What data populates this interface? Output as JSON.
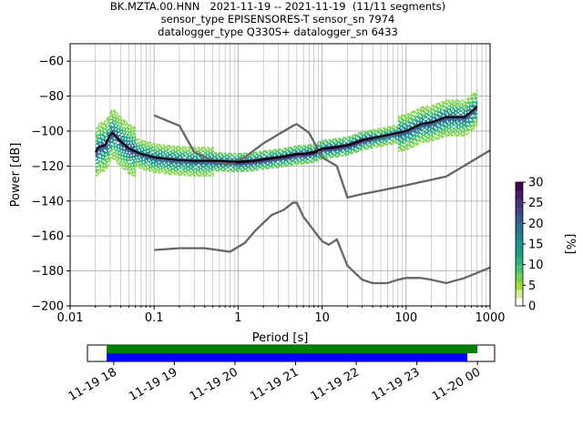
{
  "title_lines": [
    "BK.MZTA.00.HNN   2021-11-19 -- 2021-11-19  (11/11 segments)",
    "sensor_type EPISENSORES-T sensor_sn 7974",
    "datalogger_type Q330S+ datalogger_sn 6433"
  ],
  "colors": {
    "median": "#000000",
    "noise_models": "#666666",
    "coverage_data": "#008000",
    "coverage_gaps_bar": "#0000ff",
    "grid": "#b0b0b0"
  },
  "chart_data": [
    {
      "type": "heatmap",
      "subtype": "probabilistic power spectral density",
      "xlabel": "Period [s]",
      "ylabel": "Power [dB]",
      "xscale": "log",
      "xlim": [
        0.01,
        1000
      ],
      "ylim": [
        -200,
        -50
      ],
      "x_ticks": [
        0.01,
        0.1,
        1,
        10,
        100,
        1000
      ],
      "x_tick_labels": [
        "0.01",
        "0.1",
        "1",
        "10",
        "100",
        "1000"
      ],
      "y_ticks": [
        -200,
        -180,
        -160,
        -140,
        -120,
        -100,
        -80,
        -60
      ],
      "y_tick_labels": [
        "−200",
        "−180",
        "−160",
        "−140",
        "−120",
        "−100",
        "−80",
        "−60"
      ],
      "grid": true,
      "colorbar": {
        "label": "[%]",
        "range": [
          0,
          30
        ],
        "ticks": [
          0,
          5,
          10,
          15,
          20,
          25,
          30
        ],
        "colormap": "viridis_r (white at 0)"
      },
      "series": [
        {
          "role": "median",
          "x": [
            0.02,
            0.022,
            0.026,
            0.03,
            0.032,
            0.035,
            0.04,
            0.05,
            0.07,
            0.1,
            0.15,
            0.2,
            0.3,
            0.5,
            1,
            1.5,
            2,
            3,
            4,
            5,
            6,
            8,
            10,
            15,
            20,
            30,
            50,
            80,
            100,
            150,
            200,
            300,
            500,
            700
          ],
          "y": [
            -112,
            -109,
            -108,
            -102,
            -101,
            -103,
            -106,
            -110,
            -113,
            -115,
            -116,
            -116.5,
            -117,
            -117,
            -117.5,
            -117,
            -116,
            -115,
            -114,
            -113,
            -113,
            -112,
            -110,
            -109,
            -108,
            -105,
            -103,
            -101,
            -100,
            -96,
            -95,
            -92,
            -92,
            -86
          ]
        },
        {
          "role": "noise-model",
          "x": [
            0.1,
            0.2,
            0.3,
            0.5,
            0.8,
            1.2,
            2,
            3,
            4.5,
            5,
            7,
            10,
            15,
            20,
            30,
            50,
            100,
            300,
            1000
          ],
          "y": [
            -91,
            -97,
            -112,
            -117,
            -119,
            -115,
            -107,
            -102,
            -97,
            -96,
            -101,
            -115,
            -120,
            -138,
            -136,
            -134,
            -131,
            -126,
            -111
          ]
        },
        {
          "role": "noise-model",
          "x": [
            0.1,
            0.2,
            0.4,
            0.8,
            1.2,
            1.6,
            2.5,
            3.5,
            4.5,
            5,
            6,
            8,
            10,
            12,
            15,
            20,
            30,
            40,
            60,
            80,
            100,
            150,
            200,
            300,
            500,
            1000
          ],
          "y": [
            -168,
            -167,
            -167,
            -169,
            -164,
            -157,
            -148,
            -145,
            -141,
            -141,
            -149,
            -157,
            -163,
            -165,
            -162,
            -177,
            -185,
            -187,
            -187,
            -185,
            -184,
            -184,
            -185,
            -187,
            -184,
            -178
          ]
        }
      ]
    },
    {
      "type": "timeline",
      "x_tick_labels": [
        "11-19 18",
        "11-19 19",
        "11-19 20",
        "11-19 21",
        "11-19 22",
        "11-19 23",
        "11-20 00"
      ],
      "bars": [
        {
          "role": "data-coverage",
          "color": "#008000",
          "start": "11-19 17:53",
          "end": "11-20 00:00"
        },
        {
          "role": "processed-psd-coverage",
          "color": "#0000ff",
          "start": "11-19 17:53",
          "end": "11-19 23:50"
        }
      ]
    }
  ]
}
